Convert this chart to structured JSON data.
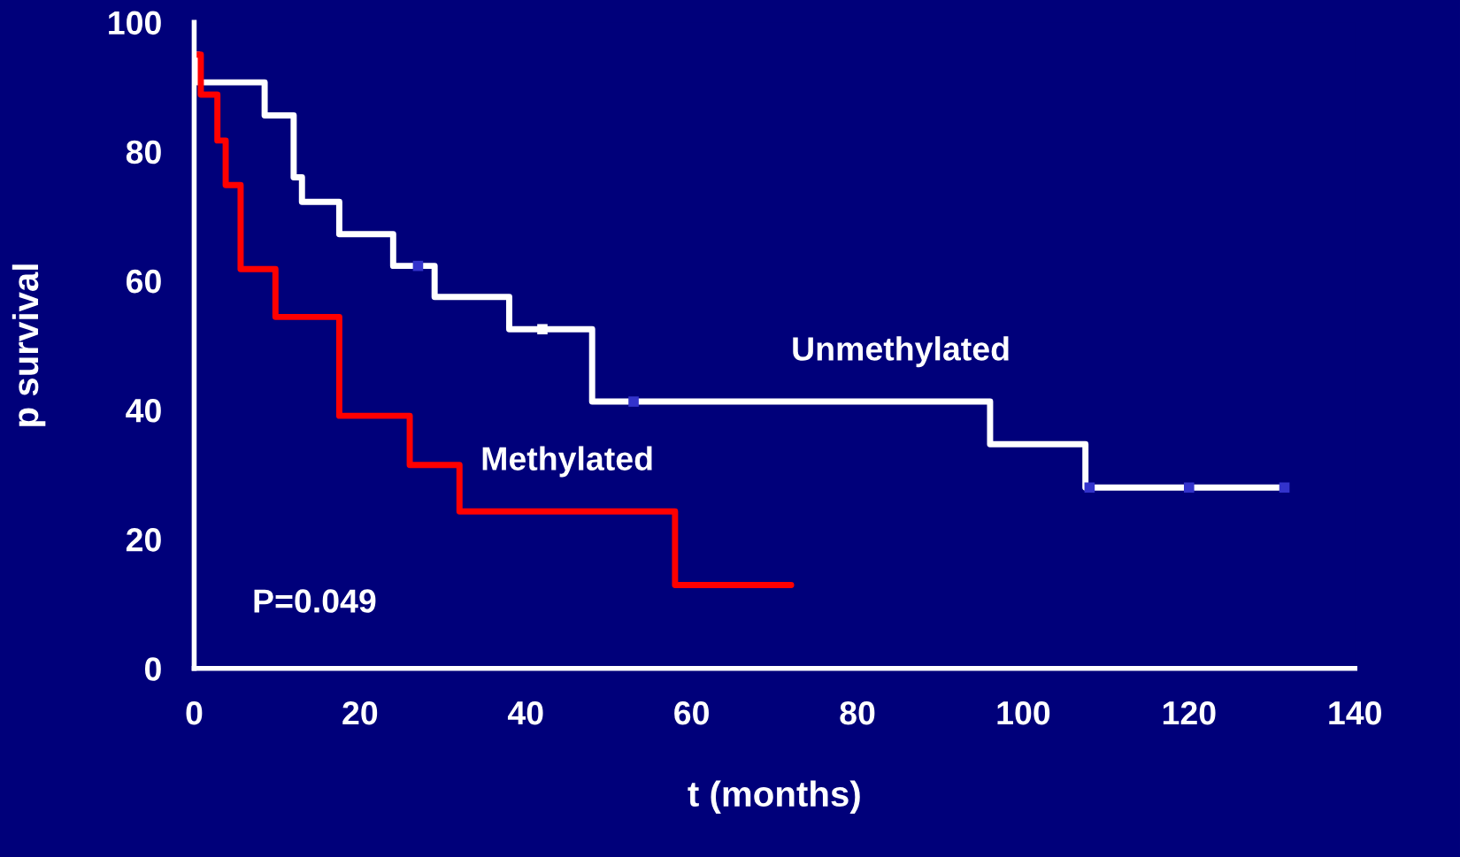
{
  "chart_data": {
    "type": "step",
    "xlabel": "t (months)",
    "ylabel": "p survival",
    "xlim": [
      0,
      140
    ],
    "xticks": [
      0,
      20,
      40,
      60,
      80,
      100,
      120,
      140
    ],
    "ylim": [
      0,
      100
    ],
    "yticks": [
      0,
      20,
      40,
      60,
      80,
      100
    ],
    "grid": false,
    "legend": false,
    "series": [
      {
        "name": "Unmethylated",
        "color": "#ffffff",
        "x": [
          0,
          0.5,
          8.5,
          12,
          13,
          17.5,
          24,
          29,
          38,
          48,
          96,
          107.5,
          131.5
        ],
        "values": [
          95,
          90.7,
          85.6,
          76,
          72.2,
          67.2,
          62.3,
          57.5,
          52.5,
          41.3,
          34.7,
          28,
          28
        ]
      },
      {
        "name": "Methylated",
        "color": "#ff0000",
        "x": [
          0,
          0.8,
          2.8,
          3.8,
          5.6,
          9.8,
          17.5,
          26,
          32,
          58,
          72
        ],
        "values": [
          95,
          88.8,
          81.7,
          74.8,
          61.8,
          54.4,
          39.1,
          31.5,
          24.3,
          12.9,
          12.9
        ]
      },
      {
        "type": "scatter",
        "marker": "square",
        "colors": [
          "#3333cc",
          "#ffffff",
          "#3333cc",
          "#3333cc",
          "#3333cc",
          "#3333cc"
        ],
        "x": [
          27,
          42,
          53,
          108,
          120,
          131.5
        ],
        "values": [
          62.3,
          52.5,
          41.3,
          28,
          28,
          28
        ]
      }
    ],
    "annotations": [
      "P=0.049"
    ]
  }
}
